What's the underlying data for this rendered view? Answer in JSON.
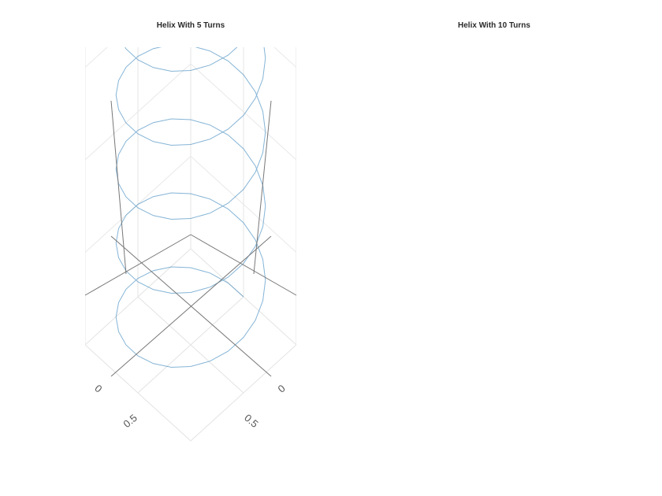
{
  "titles": {
    "left": "Helix With 5 Turns",
    "right": "Helix With 10 Turns"
  },
  "chart_data": [
    {
      "type": "line",
      "subtype": "3d-helix",
      "title": "Helix With 5 Turns",
      "series": [
        {
          "turns": 5,
          "radius": 0.5,
          "center": [
            0.5,
            0.5
          ],
          "color": "#1f77b4"
        }
      ],
      "ticks": {
        "x": [
          "0",
          "0.5"
        ],
        "y": [
          "0",
          "0.5"
        ]
      },
      "grid": true
    },
    {
      "type": "line",
      "subtype": "3d-helix",
      "title": "Helix With 10 Turns",
      "series": [],
      "grid": false
    }
  ]
}
